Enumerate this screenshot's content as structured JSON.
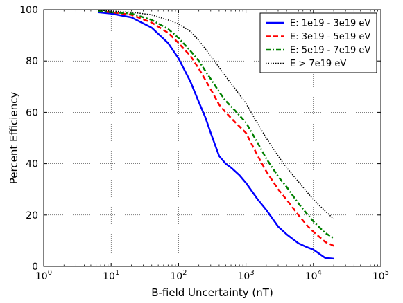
{
  "chart_data": {
    "type": "line",
    "xscale": "log",
    "xlabel": "B-field Uncertainty (nT)",
    "ylabel": "Percent Efficiency",
    "xlim": [
      1,
      100000
    ],
    "ylim": [
      0,
      100
    ],
    "x_ticks": [
      1,
      10,
      100,
      1000,
      10000,
      100000
    ],
    "x_tick_labels": [
      {
        "base": "10",
        "exp": "0"
      },
      {
        "base": "10",
        "exp": "1"
      },
      {
        "base": "10",
        "exp": "2"
      },
      {
        "base": "10",
        "exp": "3"
      },
      {
        "base": "10",
        "exp": "4"
      },
      {
        "base": "10",
        "exp": "5"
      }
    ],
    "y_ticks": [
      0,
      20,
      40,
      60,
      80,
      100
    ],
    "y_tick_labels": [
      "0",
      "20",
      "40",
      "60",
      "80",
      "100"
    ],
    "grid": true,
    "legend_position": "top-right",
    "series": [
      {
        "name": "E: 1e19 - 3e19 eV",
        "color": "#0000ff",
        "style": "solid",
        "x": [
          6.5,
          10,
          20,
          40,
          70,
          100,
          150,
          200,
          250,
          300,
          400,
          500,
          600,
          800,
          1000,
          1500,
          2000,
          3000,
          4000,
          6000,
          8000,
          10000,
          15000,
          20000
        ],
        "y": [
          99,
          98.5,
          97,
          93,
          87,
          81,
          72,
          64,
          58,
          52,
          43,
          40,
          38.5,
          35.5,
          32.5,
          26,
          22,
          15.5,
          12.5,
          9,
          7.5,
          6.5,
          3.3,
          3
        ]
      },
      {
        "name": "E: 3e19 - 5e19 eV",
        "color": "#ff0000",
        "style": "dashed",
        "x": [
          6.5,
          10,
          20,
          40,
          70,
          100,
          150,
          200,
          300,
          400,
          500,
          700,
          1000,
          1500,
          2000,
          3000,
          4000,
          6000,
          8000,
          10000,
          15000,
          20000
        ],
        "y": [
          99.5,
          99,
          98,
          95,
          91,
          87,
          82,
          77,
          69,
          63,
          60,
          56,
          52,
          43,
          37,
          30,
          26,
          20,
          16,
          13.5,
          9.5,
          8
        ]
      },
      {
        "name": "E: 5e19 - 7e19 eV",
        "color": "#008000",
        "style": "dashdot",
        "x": [
          6.5,
          10,
          20,
          40,
          70,
          100,
          150,
          200,
          300,
          400,
          500,
          700,
          1000,
          1500,
          2000,
          3000,
          4000,
          6000,
          8000,
          10000,
          15000,
          20000
        ],
        "y": [
          99.5,
          99,
          98.5,
          96,
          92.5,
          89,
          84,
          80,
          73,
          68,
          64.5,
          60.5,
          56,
          48,
          42,
          35,
          31,
          24.5,
          20.5,
          17.5,
          13,
          11
        ]
      },
      {
        "name": "E > 7e19 eV",
        "color": "#000000",
        "style": "dotted",
        "x": [
          6.5,
          10,
          20,
          40,
          70,
          100,
          150,
          200,
          300,
          400,
          500,
          700,
          1000,
          1500,
          2000,
          3000,
          4000,
          6000,
          8000,
          10000,
          15000,
          20000
        ],
        "y": [
          99.8,
          99.5,
          99,
          98,
          96,
          94.5,
          91.5,
          88,
          82,
          77.5,
          74,
          69,
          63.5,
          55.5,
          50,
          43,
          38.5,
          33,
          29,
          26,
          21.5,
          18.5
        ]
      }
    ]
  }
}
